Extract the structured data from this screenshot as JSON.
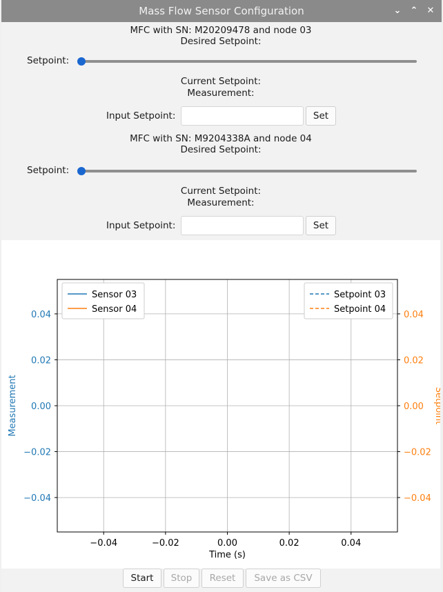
{
  "window": {
    "title": "Mass Flow Sensor Configuration",
    "controls": [
      "chevron-down",
      "chevron-up",
      "close"
    ]
  },
  "mfc": [
    {
      "header": "MFC with SN: M20209478 and node 03",
      "desired_setpoint": "Desired Setpoint:",
      "slider_label": "Setpoint:",
      "slider_value": 0,
      "current_setpoint": "Current Setpoint:",
      "measurement": "Measurement:",
      "input_label": "Input Setpoint:",
      "input_value": "",
      "set_label": "Set"
    },
    {
      "header": "MFC with SN: M9204338A and node 04",
      "desired_setpoint": "Desired Setpoint:",
      "slider_label": "Setpoint:",
      "slider_value": 0,
      "current_setpoint": "Current Setpoint:",
      "measurement": "Measurement:",
      "input_label": "Input Setpoint:",
      "input_value": "",
      "set_label": "Set"
    }
  ],
  "chart_data": {
    "type": "line",
    "xlabel": "Time (s)",
    "ylabel_left": "Measurement",
    "ylabel_right": "Setpoint",
    "xlim": [
      -0.055,
      0.055
    ],
    "ylim": [
      -0.055,
      0.055
    ],
    "xticks": [
      -0.04,
      -0.02,
      0.0,
      0.02,
      0.04
    ],
    "xtick_labels": [
      "−0.04",
      "−0.02",
      "0.00",
      "0.02",
      "0.04"
    ],
    "yticks": [
      0.04,
      0.02,
      0.0,
      -0.02,
      -0.04
    ],
    "ytick_labels": [
      "0.04",
      "0.02",
      "0.00",
      "−0.02",
      "−0.04"
    ],
    "grid": true,
    "legend_left": [
      {
        "name": "Sensor 03",
        "color": "#1f77b4",
        "style": "solid"
      },
      {
        "name": "Sensor 04",
        "color": "#ff7f0e",
        "style": "solid"
      }
    ],
    "legend_right": [
      {
        "name": "Setpoint 03",
        "color": "#1f77b4",
        "style": "dashed"
      },
      {
        "name": "Setpoint 04",
        "color": "#ff7f0e",
        "style": "dashed"
      }
    ],
    "series": [
      {
        "name": "Sensor 03",
        "x": [],
        "y": []
      },
      {
        "name": "Sensor 04",
        "x": [],
        "y": []
      },
      {
        "name": "Setpoint 03",
        "x": [],
        "y": []
      },
      {
        "name": "Setpoint 04",
        "x": [],
        "y": []
      }
    ],
    "left_axis_color": "#1f77b4",
    "right_axis_color": "#ff7f0e"
  },
  "bottom_buttons": [
    {
      "label": "Start",
      "enabled": true
    },
    {
      "label": "Stop",
      "enabled": false
    },
    {
      "label": "Reset",
      "enabled": false
    },
    {
      "label": "Save as CSV",
      "enabled": false
    }
  ]
}
